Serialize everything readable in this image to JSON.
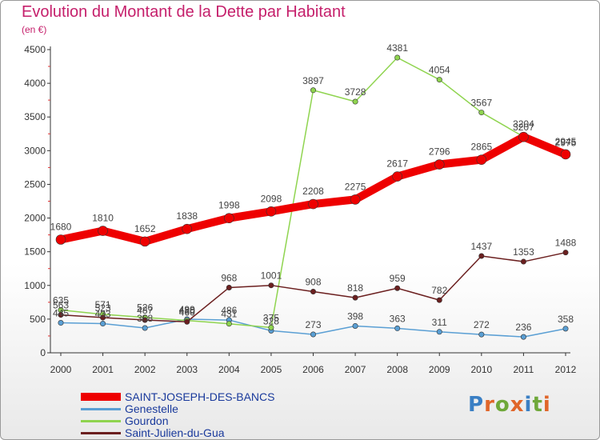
{
  "title": "Evolution du Montant de la Dette par Habitant",
  "subtitle": "(en €)",
  "logo": {
    "text": "Proxiti",
    "colors": [
      "#3a7fc4",
      "#e0662a",
      "#6fa83a",
      "#e0662a",
      "#3a7fc4",
      "#6fa83a",
      "#e0662a"
    ]
  },
  "chart_data": {
    "type": "line",
    "x": [
      "2000",
      "2001",
      "2002",
      "2003",
      "2004",
      "2005",
      "2006",
      "2007",
      "2008",
      "2009",
      "2010",
      "2011",
      "2012"
    ],
    "ylim": [
      0,
      4500
    ],
    "yticks": [
      0,
      500,
      1000,
      1500,
      2000,
      2500,
      3000,
      3500,
      4000,
      4500
    ],
    "grid": false,
    "legend_position": "bottom-left",
    "series": [
      {
        "name": "SAINT-JOSEPH-DES-BANCS",
        "color": "#ee0000",
        "width": 10,
        "values": [
          1680,
          1810,
          1652,
          1838,
          1998,
          2098,
          2208,
          2275,
          2617,
          2796,
          2865,
          3204,
          2945
        ]
      },
      {
        "name": "Genestelle",
        "color": "#5a9fd4",
        "width": 1.5,
        "values": [
          445,
          433,
          368,
          499,
          486,
          328,
          273,
          398,
          363,
          311,
          272,
          236,
          358
        ]
      },
      {
        "name": "Gourdon",
        "color": "#8fd44f",
        "width": 1.5,
        "values": [
          635,
          571,
          526,
          480,
          431,
          375,
          3897,
          3728,
          4381,
          4054,
          3567,
          3207,
          2975
        ]
      },
      {
        "name": "Saint-Julien-du-Gua",
        "color": "#6b1f1f",
        "width": 1.5,
        "values": [
          563,
          523,
          487,
          460,
          968,
          1001,
          908,
          818,
          959,
          782,
          1437,
          1353,
          1488
        ]
      }
    ]
  }
}
